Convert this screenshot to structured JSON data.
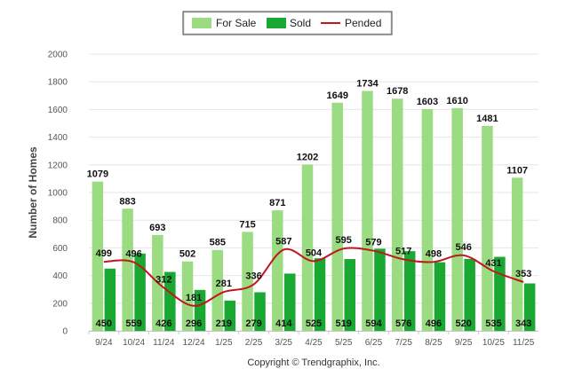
{
  "chart_data": {
    "type": "bar",
    "categories": [
      "9/24",
      "10/24",
      "11/24",
      "12/24",
      "1/25",
      "2/25",
      "3/25",
      "4/25",
      "5/25",
      "6/25",
      "7/25",
      "8/25",
      "9/25",
      "10/25",
      "11/25"
    ],
    "series": [
      {
        "name": "For Sale",
        "type": "bar",
        "color": "#9bdc83",
        "values": [
          1079,
          883,
          693,
          502,
          585,
          715,
          871,
          1202,
          1649,
          1734,
          1678,
          1603,
          1610,
          1481,
          1107
        ]
      },
      {
        "name": "Sold",
        "type": "bar",
        "color": "#19a832",
        "values": [
          450,
          559,
          426,
          296,
          219,
          279,
          414,
          525,
          519,
          594,
          576,
          496,
          520,
          535,
          343
        ]
      },
      {
        "name": "Pended",
        "type": "line",
        "color": "#c0161c",
        "values": [
          499,
          496,
          312,
          181,
          281,
          336,
          587,
          504,
          595,
          579,
          517,
          498,
          546,
          431,
          353
        ]
      }
    ],
    "title": "",
    "xlabel": "",
    "ylabel": "Number of Homes",
    "ylim": [
      0,
      2000
    ],
    "yticks": [
      0,
      200,
      400,
      600,
      800,
      1000,
      1200,
      1400,
      1600,
      1800,
      2000
    ],
    "grid": true,
    "legend_position": "top-center"
  },
  "footer": {
    "copyright": "Copyright © Trendgraphix, Inc."
  }
}
